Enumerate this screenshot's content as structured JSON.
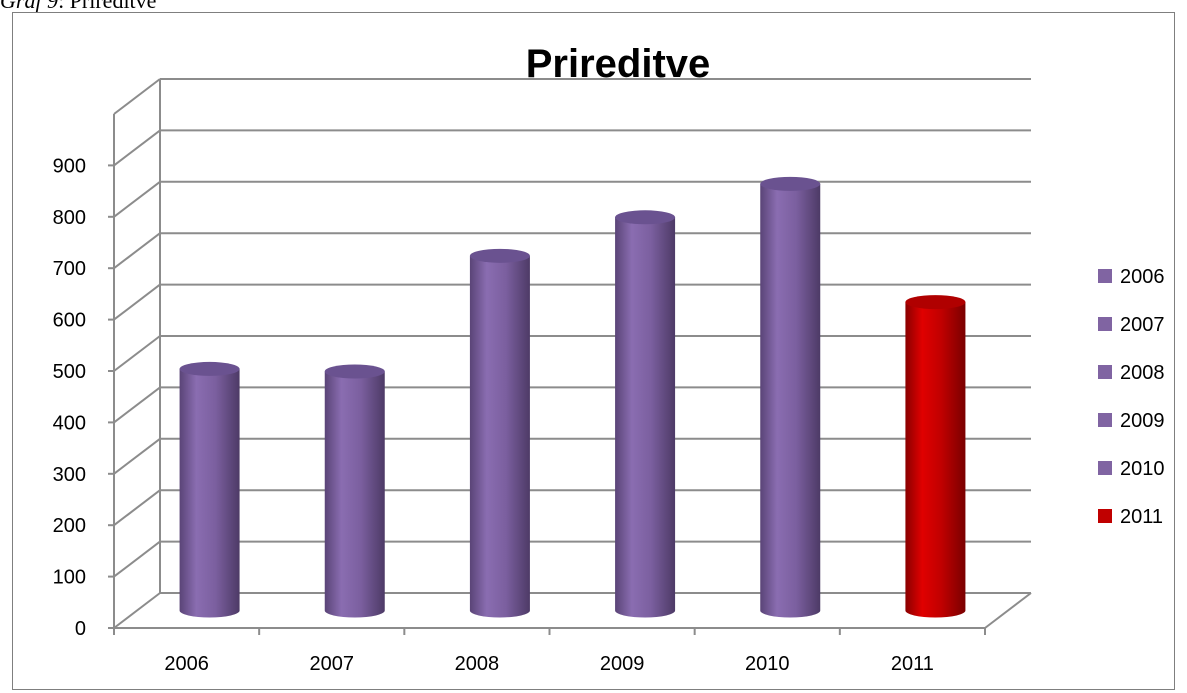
{
  "caption": {
    "label": "Graf 9",
    "text": ": Prireditve"
  },
  "chart_data": {
    "type": "bar",
    "title": "Prireditve",
    "categories": [
      "2006",
      "2007",
      "2008",
      "2009",
      "2010",
      "2011"
    ],
    "values": [
      470,
      465,
      690,
      765,
      830,
      600
    ],
    "ylim": [
      0,
      900
    ],
    "yticks": [
      "0",
      "100",
      "200",
      "300",
      "400",
      "500",
      "600",
      "700",
      "800",
      "900"
    ],
    "grid": true,
    "legend": {
      "placement": "right",
      "entries": [
        "2006",
        "2007",
        "2008",
        "2009",
        "2010",
        "2011"
      ]
    },
    "colors": {
      "default": "#8064a2",
      "highlight": "#c00000"
    },
    "highlight_index": 5
  }
}
